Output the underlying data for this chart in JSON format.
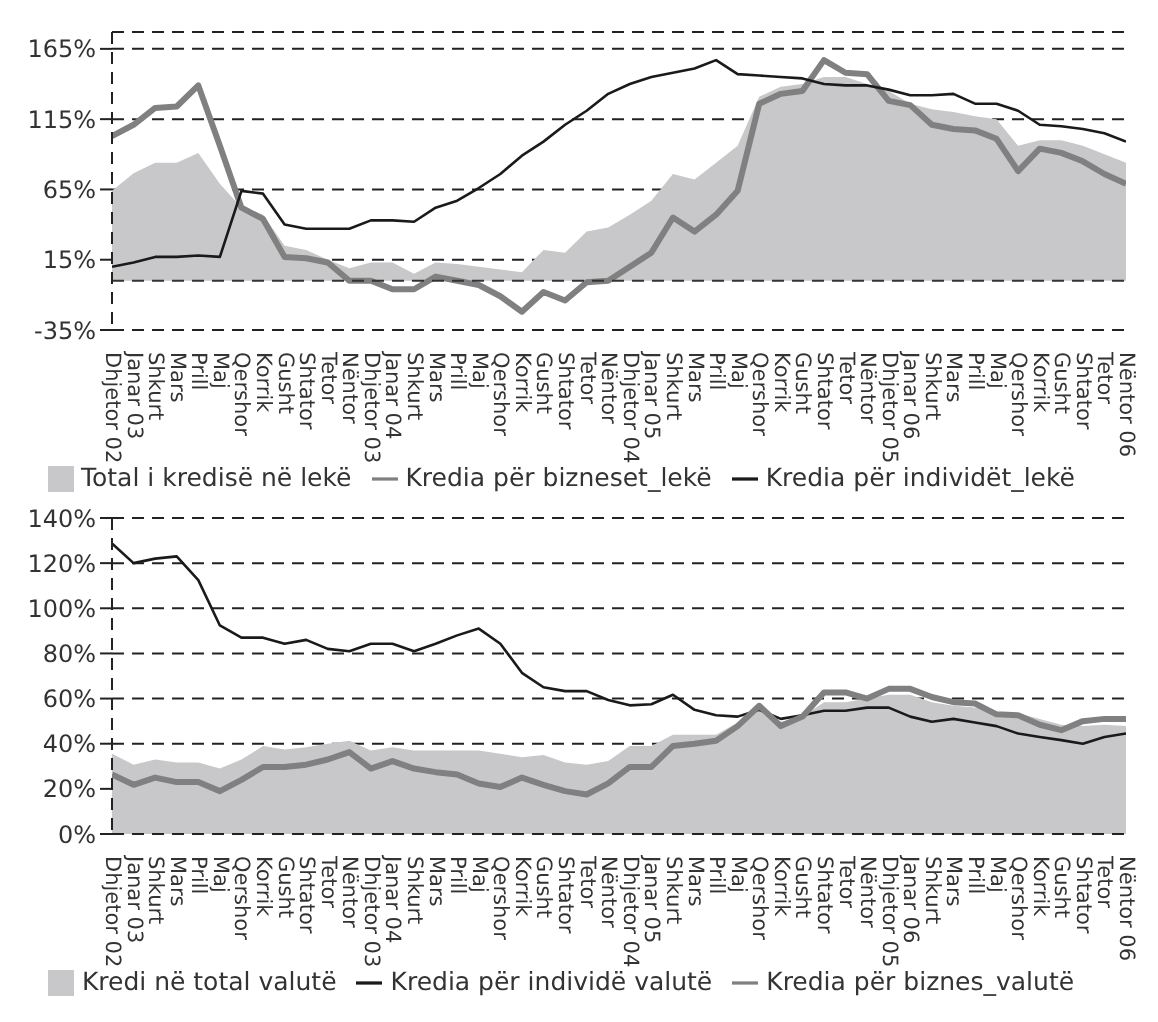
{
  "chart_data": [
    {
      "type": "line",
      "categories": [
        "Dhjetor 02",
        "Janar 03",
        "Shkurt",
        "Mars",
        "Prill",
        "Maj",
        "Qershor",
        "Korrik",
        "Gusht",
        "Shtator",
        "Tetor",
        "Nëntor",
        "Dhjetor 03",
        "Janar 04",
        "Shkurt",
        "Mars",
        "Prill",
        "Maj",
        "Qershor",
        "Korrik",
        "Gusht",
        "Shtator",
        "Tetor",
        "Nëntor",
        "Dhjetor 04",
        "Janar 05",
        "Shkurt",
        "Mars",
        "Prill",
        "Maj",
        "Qershor",
        "Korrik",
        "Gusht",
        "Shtator",
        "Tetor",
        "Nëntor",
        "Dhjetor 05",
        "Janar 06",
        "Shkurt",
        "Mars",
        "Prill",
        "Maj",
        "Qershor",
        "Korrik",
        "Gusht",
        "Shtator",
        "Tetor",
        "Nëntor 06"
      ],
      "series": [
        {
          "type": "area",
          "name": "Total i kredisë në lekë",
          "color": "#c8c8ca",
          "values": [
            64,
            76.5,
            84,
            84,
            91,
            69,
            52,
            47,
            25,
            22,
            15,
            9,
            13,
            13,
            5,
            13,
            12,
            10,
            8,
            6,
            22,
            20,
            35,
            38,
            47,
            57,
            76,
            72,
            84,
            96,
            131,
            138,
            140,
            145,
            145,
            140,
            135,
            126,
            122,
            120,
            117,
            115,
            96,
            100,
            100,
            96,
            90,
            84
          ]
        },
        {
          "name": "Kredia për bizneset_lekë",
          "color": "#808080",
          "values": [
            103,
            111,
            123,
            124,
            139,
            96,
            52,
            44,
            17,
            16,
            13,
            0,
            0,
            -6,
            -6,
            3,
            0,
            -3,
            -11,
            -22,
            -8,
            -14,
            -1,
            0,
            10,
            20,
            45,
            35,
            47,
            64,
            126,
            133,
            135,
            157,
            148,
            147,
            128,
            125,
            111,
            108,
            107,
            101,
            78,
            94,
            91,
            85,
            76,
            69
          ]
        },
        {
          "name": "Kredia për individët_lekë",
          "color": "#1a1a1a",
          "values": [
            10,
            13,
            17,
            17,
            18,
            17,
            64,
            62,
            40,
            37,
            37,
            37,
            43,
            43,
            42,
            52,
            57,
            66,
            76,
            89,
            99,
            111,
            121,
            133,
            140,
            145,
            148,
            151,
            157,
            147,
            146,
            145,
            144,
            140,
            139,
            139,
            136,
            132,
            132,
            133,
            126,
            126,
            121,
            111,
            110,
            108,
            105,
            99
          ]
        }
      ],
      "ylim": [
        -35,
        177
      ],
      "yticks": [
        {
          "value": -35,
          "label": "-35%"
        },
        {
          "value": 15,
          "label": "15%"
        },
        {
          "value": 65,
          "label": "65%"
        },
        {
          "value": 115,
          "label": "115%"
        },
        {
          "value": 165,
          "label": "165%"
        }
      ],
      "ref_lines": [
        {
          "axis": "y",
          "value": 0,
          "color": "#333333",
          "line_style": "dashed"
        }
      ],
      "grid": "y",
      "legend": "bottom"
    },
    {
      "type": "line",
      "categories": [
        "Dhjetor 02",
        "Janar 03",
        "Shkurt",
        "Mars",
        "Prill",
        "Maj",
        "Qershor",
        "Korrik",
        "Gusht",
        "Shtator",
        "Tetor",
        "Nëntor",
        "Dhjetor 03",
        "Janar 04",
        "Shkurt",
        "Mars",
        "Prill",
        "Maj",
        "Qershor",
        "Korrik",
        "Gusht",
        "Shtator",
        "Tetor",
        "Nëntor",
        "Dhjetor 04",
        "Janar 05",
        "Shkurt",
        "Mars",
        "Prill",
        "Maj",
        "Qershor",
        "Korrik",
        "Gusht",
        "Shtator",
        "Tetor",
        "Nëntor",
        "Dhjetor 05",
        "Janar 06",
        "Shkurt",
        "Mars",
        "Prill",
        "Maj",
        "Qershor",
        "Korrik",
        "Gusht",
        "Shtator",
        "Tetor",
        "Nëntor 06"
      ],
      "series": [
        {
          "type": "area",
          "name": "Kredi në total  valutë",
          "color": "#c8c8ca",
          "values": [
            35.6,
            30.7,
            33,
            31.7,
            31.7,
            29,
            33,
            39,
            37.4,
            38.4,
            40,
            41.3,
            37,
            38.4,
            37,
            37,
            37,
            37,
            35.6,
            34,
            35,
            31.7,
            30.7,
            32.3,
            39,
            39,
            44,
            44,
            44,
            49.4,
            56,
            49.7,
            52,
            58.4,
            58.4,
            60,
            61.7,
            61.7,
            58.4,
            56.8,
            56,
            54,
            53.6,
            51,
            48.4,
            47.8,
            48.4,
            47.8
          ]
        },
        {
          "name": "Kredia për individë  valutë",
          "color": "#1a1a1a",
          "values": [
            128.7,
            120,
            122,
            123,
            112.5,
            92.4,
            87,
            87,
            84.3,
            86,
            82,
            81,
            84.3,
            84.3,
            81,
            84.3,
            88,
            91,
            84.3,
            71.4,
            65,
            63.3,
            63.3,
            59.4,
            57,
            57.5,
            61.7,
            55,
            52.6,
            52,
            55,
            51,
            52.6,
            54.6,
            54.6,
            56,
            56,
            52,
            49.7,
            51,
            49.4,
            47.8,
            44.5,
            43,
            41.6,
            40,
            43,
            44.5
          ]
        },
        {
          "name": "Kredia për biznes_valutë",
          "color": "#808080",
          "values": [
            26.4,
            21.8,
            25,
            23,
            23,
            19,
            24,
            29.7,
            29.7,
            30.7,
            33,
            36.3,
            29,
            32.3,
            29,
            27.4,
            26.4,
            22.4,
            20.8,
            25,
            21.8,
            19,
            17.5,
            22.4,
            29.7,
            29.7,
            39,
            40,
            41.3,
            47.8,
            56.8,
            47.8,
            52,
            62.7,
            62.7,
            60,
            64.3,
            64.3,
            60.7,
            58.4,
            57.8,
            53,
            52.6,
            48.4,
            46,
            50,
            51,
            51
          ]
        }
      ],
      "ylim": [
        0,
        140
      ],
      "yticks": [
        {
          "value": 0,
          "label": "0%"
        },
        {
          "value": 20,
          "label": "20%"
        },
        {
          "value": 40,
          "label": "40%"
        },
        {
          "value": 60,
          "label": "60%"
        },
        {
          "value": 80,
          "label": "80%"
        },
        {
          "value": 100,
          "label": "100%"
        },
        {
          "value": 120,
          "label": "120%"
        },
        {
          "value": 140,
          "label": "140%"
        }
      ],
      "grid": "y",
      "legend": "bottom"
    }
  ]
}
